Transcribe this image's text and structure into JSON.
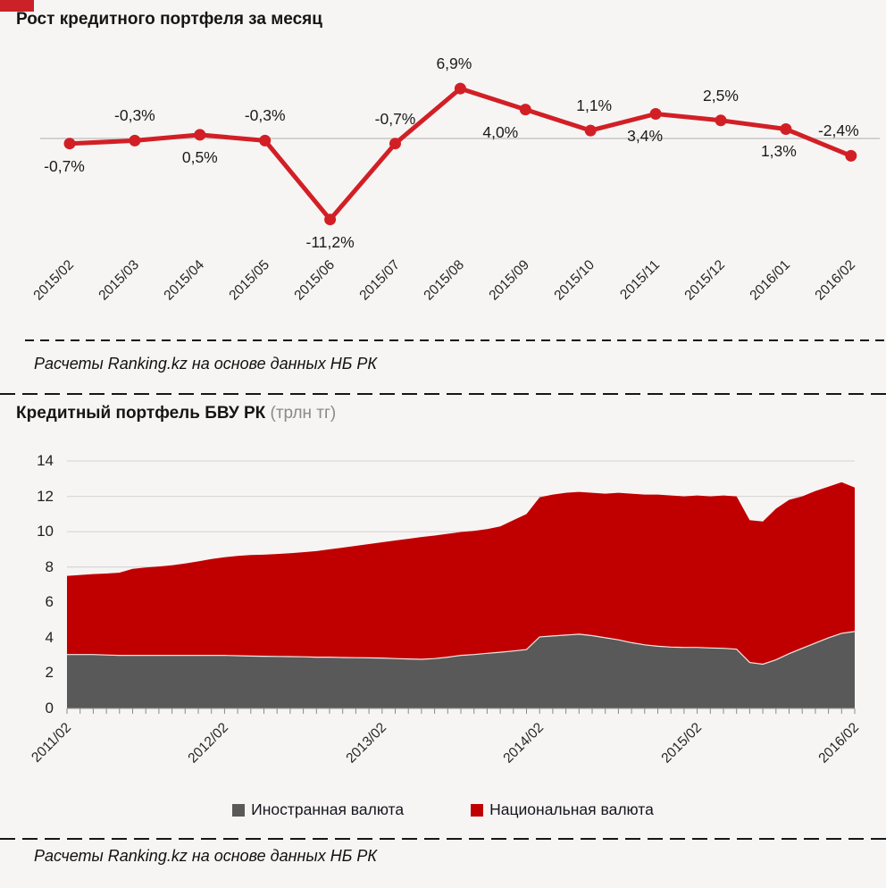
{
  "page": {
    "background": "#f6f5f3",
    "source_note": "Расчеты Ranking.kz на основе данных НБ РК"
  },
  "colors": {
    "line_red": "#d21f26",
    "area_red": "#c00000",
    "area_gray": "#595959",
    "gridline": "#d9d9d9",
    "zero_line": "#c6c6c6",
    "separator": "#161616"
  },
  "chart_data": [
    {
      "type": "line",
      "title": "Рост кредитного портфеля за месяц",
      "source": "Расчеты Ranking.kz на основе данных НБ РК",
      "categories": [
        "2015/02",
        "2015/03",
        "2015/04",
        "2015/05",
        "2015/06",
        "2015/07",
        "2015/08",
        "2015/09",
        "2015/10",
        "2015/11",
        "2015/12",
        "2016/01",
        "2016/02"
      ],
      "values": [
        -0.7,
        -0.3,
        0.5,
        -0.3,
        -11.2,
        -0.7,
        6.9,
        4.0,
        1.1,
        3.4,
        2.5,
        1.3,
        -2.4
      ],
      "labels": [
        "-0,7%",
        "-0,3%",
        "0,5%",
        "-0,3%",
        "-11,2%",
        "-0,7%",
        "6,9%",
        "4,0%",
        "1,1%",
        "3,4%",
        "2,5%",
        "1,3%",
        "-2,4%"
      ],
      "label_position": [
        "below",
        "above",
        "below",
        "above",
        "below",
        "above",
        "above",
        "below",
        "above",
        "below",
        "above",
        "below",
        "above"
      ],
      "line_color": "#d21f26",
      "marker": "circle",
      "grid": "zero-line-only",
      "unit": "%"
    },
    {
      "type": "area",
      "stacked": true,
      "title": "Кредитный портфель БВУ РК",
      "unit": "(трлн тг)",
      "source": "Расчеты Ranking.kz на основе данных НБ РК",
      "ylim": [
        0,
        14
      ],
      "y_ticks": [
        0,
        2,
        4,
        6,
        8,
        10,
        12,
        14
      ],
      "x_start": "2011/02",
      "x_end": "2016/02",
      "x_months_total": 61,
      "x_tick_labels": [
        "2011/02",
        "2012/02",
        "2013/02",
        "2014/02",
        "2015/02",
        "2016/02"
      ],
      "x_tick_month_index": [
        0,
        12,
        24,
        36,
        48,
        60
      ],
      "legend_position": "bottom",
      "series": [
        {
          "name": "Иностранная валюта",
          "color": "#595959",
          "values": [
            3.05,
            3.05,
            3.05,
            3.02,
            3.0,
            3.0,
            3.0,
            3.0,
            3.0,
            3.0,
            3.0,
            3.0,
            3.0,
            2.98,
            2.96,
            2.95,
            2.94,
            2.93,
            2.92,
            2.9,
            2.9,
            2.88,
            2.87,
            2.86,
            2.85,
            2.82,
            2.8,
            2.78,
            2.82,
            2.9,
            3.0,
            3.05,
            3.12,
            3.18,
            3.25,
            3.33,
            4.05,
            4.1,
            4.15,
            4.2,
            4.12,
            4.0,
            3.88,
            3.72,
            3.6,
            3.52,
            3.47,
            3.45,
            3.45,
            3.42,
            3.4,
            3.35,
            2.6,
            2.5,
            2.75,
            3.1,
            3.4,
            3.7,
            4.0,
            4.25,
            4.35
          ]
        },
        {
          "name": "Национальная валюта",
          "color": "#c00000",
          "values": [
            4.45,
            4.5,
            4.55,
            4.61,
            4.68,
            4.9,
            4.97,
            5.03,
            5.1,
            5.2,
            5.32,
            5.45,
            5.55,
            5.65,
            5.72,
            5.75,
            5.8,
            5.85,
            5.92,
            6.0,
            6.1,
            6.22,
            6.33,
            6.44,
            6.55,
            6.68,
            6.8,
            6.92,
            6.96,
            6.98,
            6.98,
            7.0,
            7.03,
            7.12,
            7.4,
            7.67,
            7.9,
            8.0,
            8.05,
            8.05,
            8.08,
            8.15,
            8.32,
            8.43,
            8.5,
            8.58,
            8.58,
            8.55,
            8.6,
            8.58,
            8.65,
            8.65,
            8.05,
            8.08,
            8.55,
            8.7,
            8.6,
            8.6,
            8.55,
            8.55,
            8.15
          ]
        }
      ]
    }
  ]
}
